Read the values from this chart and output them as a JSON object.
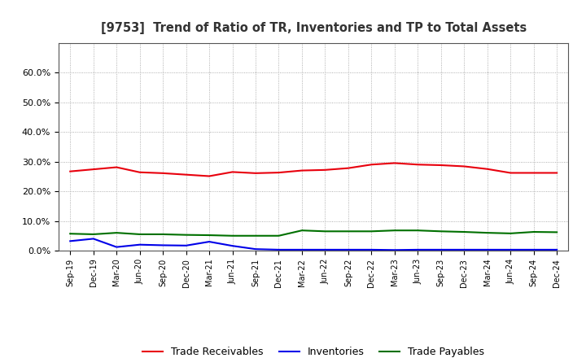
{
  "title": "[9753]  Trend of Ratio of TR, Inventories and TP to Total Assets",
  "x_labels": [
    "Sep-19",
    "Dec-19",
    "Mar-20",
    "Jun-20",
    "Sep-20",
    "Dec-20",
    "Mar-21",
    "Jun-21",
    "Sep-21",
    "Dec-21",
    "Mar-22",
    "Jun-22",
    "Sep-22",
    "Dec-22",
    "Mar-23",
    "Jun-23",
    "Sep-23",
    "Dec-23",
    "Mar-24",
    "Jun-24",
    "Sep-24",
    "Dec-24"
  ],
  "trade_receivables": [
    0.267,
    0.274,
    0.281,
    0.264,
    0.261,
    0.256,
    0.251,
    0.265,
    0.261,
    0.263,
    0.27,
    0.272,
    0.278,
    0.29,
    0.295,
    0.29,
    0.288,
    0.284,
    0.275,
    0.262,
    0.262,
    0.262
  ],
  "inventories": [
    0.032,
    0.04,
    0.012,
    0.02,
    0.018,
    0.017,
    0.03,
    0.016,
    0.005,
    0.003,
    0.003,
    0.003,
    0.003,
    0.003,
    0.002,
    0.003,
    0.003,
    0.003,
    0.003,
    0.003,
    0.003,
    0.003
  ],
  "trade_payables": [
    0.057,
    0.055,
    0.06,
    0.055,
    0.055,
    0.053,
    0.052,
    0.05,
    0.05,
    0.05,
    0.068,
    0.065,
    0.065,
    0.065,
    0.068,
    0.068,
    0.065,
    0.063,
    0.06,
    0.058,
    0.063,
    0.062
  ],
  "tr_color": "#e8000d",
  "inv_color": "#0000e8",
  "tp_color": "#007000",
  "ylim": [
    0.0,
    0.7
  ],
  "yticks": [
    0.0,
    0.1,
    0.2,
    0.3,
    0.4,
    0.5,
    0.6
  ],
  "legend_labels": [
    "Trade Receivables",
    "Inventories",
    "Trade Payables"
  ],
  "background_color": "#ffffff",
  "grid_color": "#999999",
  "title_color": "#333333"
}
